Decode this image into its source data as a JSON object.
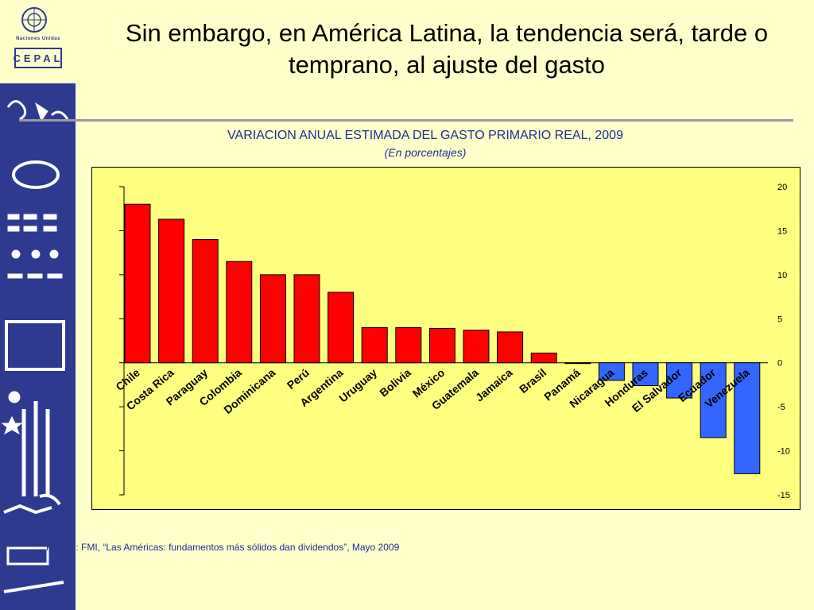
{
  "slide": {
    "title": "Sin embargo, en América Latina, la tendencia será, tarde o temprano, al ajuste del gasto"
  },
  "logo": {
    "org": "Naciones Unidas",
    "brand": "CEPAL",
    "accent_color": "#2E3A8F"
  },
  "source": {
    "label": "Fuente:",
    "text": "FMI, “Las Américas: fundamentos más sólidos dan dividendos”, Mayo 2009"
  },
  "chart_data": {
    "type": "bar",
    "title": "VARIACION ANUAL ESTIMADA DEL GASTO PRIMARIO REAL, 2009",
    "subtitle": "(En porcentajes)",
    "categories": [
      "Chile",
      "Costa Rica",
      "Paraguay",
      "Colombia",
      "Dominicana",
      "Perú",
      "Argentina",
      "Uruguay",
      "Bolivia",
      "México",
      "Guatemala",
      "Jamaica",
      "Brasil",
      "Panamá",
      "Nicaragua",
      "Honduras",
      "El Salvador",
      "Ecuador",
      "Venezuela"
    ],
    "values": [
      18.0,
      16.3,
      14.0,
      11.5,
      10.0,
      10.0,
      8.0,
      4.0,
      4.0,
      3.9,
      3.7,
      3.5,
      1.1,
      0.0,
      -2.0,
      -2.6,
      -4.0,
      -8.5,
      -12.6
    ],
    "ylim": [
      -15,
      20
    ],
    "yticks": [
      "20",
      "15",
      "10",
      "5",
      "0",
      "-5",
      "-10",
      "-15"
    ],
    "y_axis_position": "right",
    "positive_color": "#FF0000",
    "negative_color": "#3366FF",
    "plot_background": "#FFFF80",
    "grid": false,
    "legend": "none"
  }
}
